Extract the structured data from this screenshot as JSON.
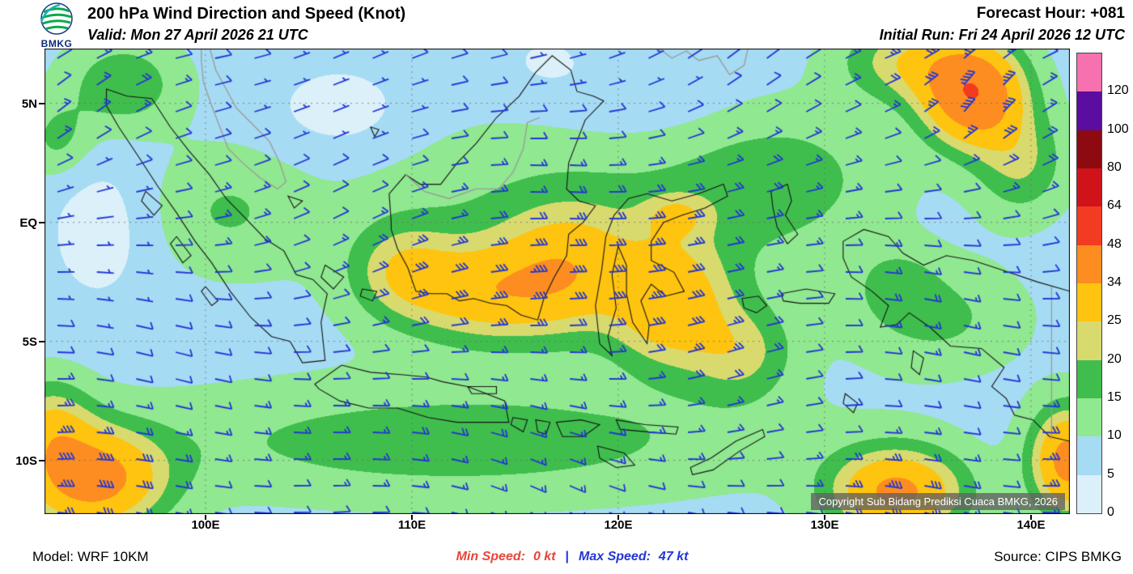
{
  "header": {
    "logo_text": "BMKG",
    "title": "200 hPa Wind Direction and Speed (Knot)",
    "valid": "Valid: Mon 27 April 2026 21 UTC",
    "forecast_hour": "Forecast Hour: +081",
    "initial_run": "Initial Run: Fri 24 April 2026 12 UTC"
  },
  "map": {
    "lat_labels": [
      "5N",
      "EQ",
      "5S",
      "10S"
    ],
    "lon_labels": [
      "100E",
      "110E",
      "120E",
      "130E",
      "140E"
    ],
    "copyright": "Copyright Sub Bidang Prediksi Cuaca BMKG, 2026",
    "barb_color": "#2236d4",
    "coastline_color": "#141414",
    "foreign_coast_color": "#9a9a9a",
    "ocean_color": "#a6dbf4"
  },
  "legend": {
    "values_top_to_bottom": [
      "120",
      "100",
      "80",
      "64",
      "48",
      "34",
      "25",
      "20",
      "15",
      "10",
      "5",
      "0"
    ],
    "colors_top_to_bottom": [
      "#f770b0",
      "#5a0da0",
      "#8c0a10",
      "#d0131b",
      "#f33b21",
      "#fd8d20",
      "#fec40f",
      "#d8da6e",
      "#3fbe4d",
      "#90e890",
      "#a6dbf4",
      "#dcf0fa"
    ],
    "unit": "Knot"
  },
  "footer": {
    "model": "Model: WRF 10KM",
    "min_speed_label": "Min Speed:",
    "min_speed_value": "0 kt",
    "separator": "|",
    "max_speed_label": "Max Speed:",
    "max_speed_value": "47 kt",
    "source": "Source: CIPS BMKG"
  }
}
